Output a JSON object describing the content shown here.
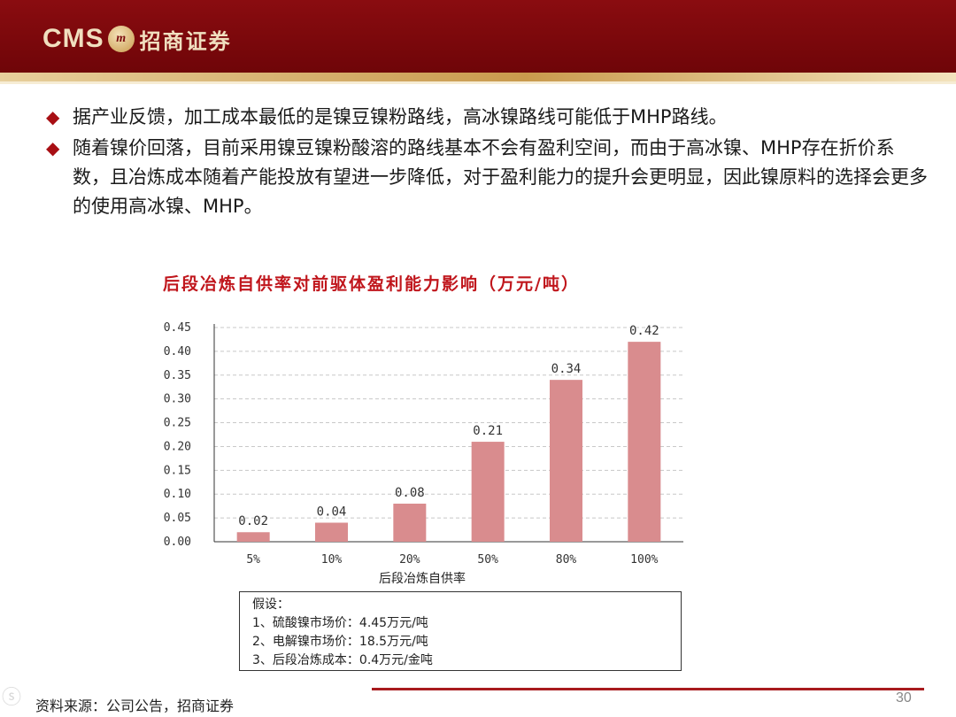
{
  "header": {
    "logo_text": "CMS",
    "logo_emblem": "m",
    "company_name": "招商证券"
  },
  "bullets": [
    "据产业反馈，加工成本最低的是镍豆镍粉路线，高冰镍路线可能低于MHP路线。",
    "随着镍价回落，目前采用镍豆镍粉酸溶的路线基本不会有盈利空间，而由于高冰镍、MHP存在折价系数，且冶炼成本随着产能投放有望进一步降低，对于盈利能力的提升会更明显，因此镍原料的选择会更多的使用高冰镍、MHP。"
  ],
  "chart_data": {
    "type": "bar",
    "title": "后段冶炼自供率对前驱体盈利能力影响（万元/吨）",
    "xlabel": "后段冶炼自供率",
    "ylabel": "",
    "categories": [
      "5%",
      "10%",
      "20%",
      "50%",
      "80%",
      "100%"
    ],
    "values": [
      0.02,
      0.04,
      0.08,
      0.21,
      0.34,
      0.42
    ],
    "value_labels": [
      "0.02",
      "0.04",
      "0.08",
      "0.21",
      "0.34",
      "0.42"
    ],
    "yticks": [
      "0.00",
      "0.05",
      "0.10",
      "0.15",
      "0.20",
      "0.25",
      "0.30",
      "0.35",
      "0.40",
      "0.45"
    ],
    "ylim": [
      0,
      0.45
    ],
    "grid": "horizontal-dashed",
    "bar_color": "#d98c8e"
  },
  "assumptions": {
    "heading": "假设：",
    "items": [
      "1、硫酸镍市场价：4.45万元/吨",
      "2、电解镍市场价：18.5万元/吨",
      "3、后段冶炼成本：0.4万元/金吨"
    ]
  },
  "footer": {
    "source": "资料来源：公司公告，招商证券",
    "page_number": "30"
  }
}
